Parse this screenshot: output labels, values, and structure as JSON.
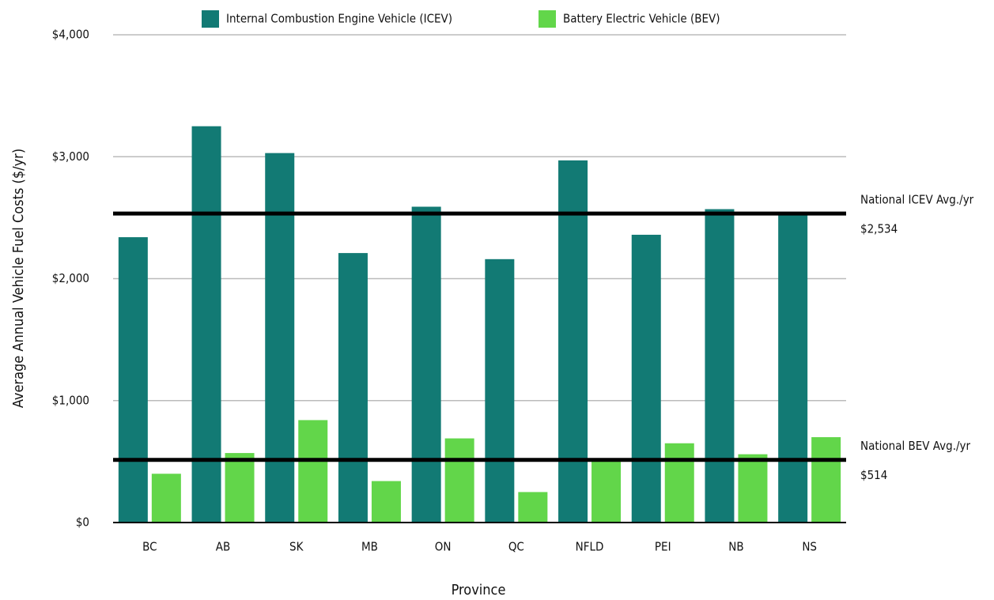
{
  "chart_data": {
    "type": "bar",
    "x_label": "Province",
    "y_label": "Average Annual Vehicle Fuel Costs ($/yr)",
    "categories": [
      "BC",
      "AB",
      "SK",
      "MB",
      "ON",
      "QC",
      "NFLD",
      "PEI",
      "NB",
      "NS"
    ],
    "series": [
      {
        "name": "Internal Combustion Engine Vehicle (ICEV)",
        "color": "#127a74",
        "values": [
          2340,
          3250,
          3030,
          2210,
          2590,
          2160,
          2970,
          2360,
          2570,
          2530
        ]
      },
      {
        "name": "Battery Electric Vehicle (BEV)",
        "color": "#62d64a",
        "values": [
          400,
          570,
          840,
          340,
          690,
          250,
          520,
          650,
          560,
          700
        ]
      }
    ],
    "ylim": [
      0,
      4000
    ],
    "yticks": [
      {
        "value": 0,
        "label": "$0"
      },
      {
        "value": 1000,
        "label": "$1,000"
      },
      {
        "value": 2000,
        "label": "$2,000"
      },
      {
        "value": 3000,
        "label": "$3,000"
      },
      {
        "value": 4000,
        "label": "$4,000"
      }
    ],
    "grid": true,
    "legend": "top",
    "annotations": [
      {
        "label": "National ICEV Avg./yr",
        "value": 2534,
        "value_label": "$2,534"
      },
      {
        "label": "National BEV Avg./yr",
        "value": 514,
        "value_label": "$514"
      }
    ]
  }
}
